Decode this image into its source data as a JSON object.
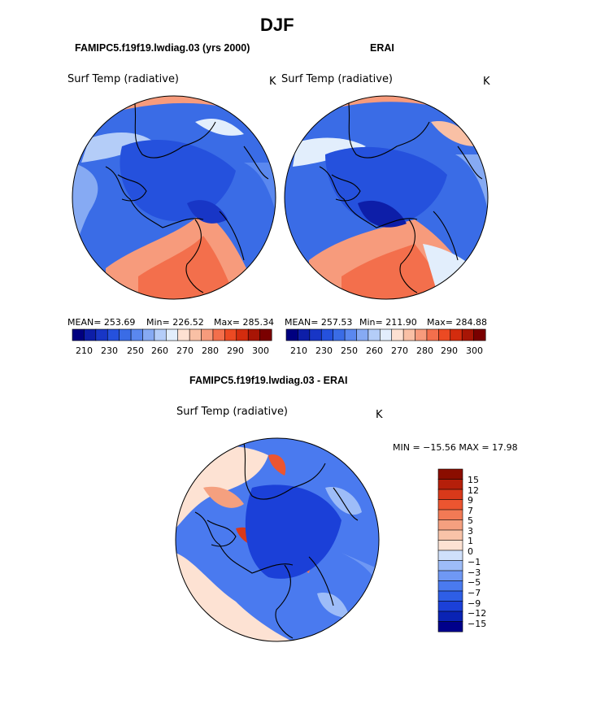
{
  "page_title": "DJF",
  "panels": {
    "model": {
      "case_title": "FAMIPC5.f19f19.lwdiag.03 (yrs 2000)",
      "field": "Surf Temp (radiative)",
      "units": "K",
      "mean": "MEAN= 253.69",
      "min": "Min= 226.52",
      "max": "Max= 285.34"
    },
    "obs": {
      "case_title": "ERAI",
      "field": "Surf Temp (radiative)",
      "units": "K",
      "mean": "MEAN= 257.53",
      "min": "Min= 211.90",
      "max": "Max= 284.88"
    },
    "diff": {
      "case_title": "FAMIPC5.f19f19.lwdiag.03 - ERAI",
      "field": "Surf Temp (radiative)",
      "units": "K",
      "minmax": "MIN = −15.56 MAX =  17.98"
    }
  },
  "chart_data": [
    {
      "type": "heatmap",
      "title": "FAMIPC5.f19f19.lwdiag.03 (yrs 2000)",
      "projection": "north polar stereographic",
      "variable": "Surf Temp (radiative)",
      "units": "K",
      "summary": {
        "mean": 253.69,
        "min": 226.52,
        "max": 285.34
      },
      "colorbar_levels": [
        205,
        210,
        220,
        230,
        240,
        250,
        255,
        260,
        265,
        270,
        275,
        280,
        285,
        290,
        295,
        300
      ],
      "colorbar_colors": [
        "#000080",
        "#0d1ea8",
        "#1836c6",
        "#2551dd",
        "#3a6ce6",
        "#5a88ef",
        "#86aaf3",
        "#b4cdf8",
        "#e2eefc",
        "#fde1d2",
        "#f9c0a5",
        "#f79b7c",
        "#f36f4c",
        "#ec4a23",
        "#d32c0e",
        "#a81505",
        "#7a0000"
      ],
      "colorbar_ticks": [
        "210",
        "230",
        "250",
        "260",
        "270",
        "280",
        "290",
        "300"
      ]
    },
    {
      "type": "heatmap",
      "title": "ERAI",
      "projection": "north polar stereographic",
      "variable": "Surf Temp (radiative)",
      "units": "K",
      "summary": {
        "mean": 257.53,
        "min": 211.9,
        "max": 284.88
      },
      "colorbar_levels": [
        205,
        210,
        220,
        230,
        240,
        250,
        255,
        260,
        265,
        270,
        275,
        280,
        285,
        290,
        295,
        300
      ],
      "colorbar_colors": [
        "#000080",
        "#0d1ea8",
        "#1836c6",
        "#2551dd",
        "#3a6ce6",
        "#5a88ef",
        "#86aaf3",
        "#b4cdf8",
        "#e2eefc",
        "#fde1d2",
        "#f9c0a5",
        "#f79b7c",
        "#f36f4c",
        "#ec4a23",
        "#d32c0e",
        "#a81505",
        "#7a0000"
      ],
      "colorbar_ticks": [
        "210",
        "230",
        "250",
        "260",
        "270",
        "280",
        "290",
        "300"
      ]
    },
    {
      "type": "heatmap",
      "title": "FAMIPC5.f19f19.lwdiag.03 - ERAI",
      "projection": "north polar stereographic",
      "variable": "Surf Temp (radiative)",
      "units": "K",
      "summary": {
        "min": -15.56,
        "max": 17.98
      },
      "colorbar_levels": [
        -15,
        -12,
        -9,
        -7,
        -5,
        -3,
        -1,
        0,
        1,
        3,
        5,
        7,
        9,
        12,
        15
      ],
      "colorbar_colors": [
        "#00008b",
        "#0a23b4",
        "#1b40d8",
        "#2e5ee6",
        "#4a7aef",
        "#6f98f4",
        "#9dbcf8",
        "#cfe0fb",
        "#fde2d3",
        "#f9c3a8",
        "#f5a07f",
        "#f27a55",
        "#ec5530",
        "#d8391a",
        "#b51f0a",
        "#8b0d00"
      ],
      "colorbar_ticks": [
        "−15",
        "−12",
        "−9",
        "−7",
        "−5",
        "−3",
        "−1",
        "0",
        "1",
        "3",
        "5",
        "7",
        "9",
        "12",
        "15"
      ]
    }
  ]
}
